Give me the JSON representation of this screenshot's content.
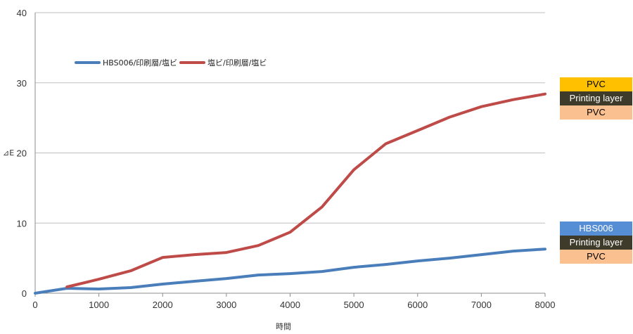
{
  "chart_data": {
    "type": "line",
    "title": "",
    "xlabel": "時間",
    "ylabel": "⊿E",
    "xlim": [
      0,
      8000
    ],
    "ylim": [
      0,
      40
    ],
    "xticks": [
      "0",
      "1000",
      "2000",
      "3000",
      "4000",
      "5000",
      "6000",
      "7000",
      "8000"
    ],
    "yticks": [
      "0",
      "10",
      "20",
      "30",
      "40"
    ],
    "grid": "horizontal",
    "legend_position": "top-left",
    "series": [
      {
        "name": "HBS006/印刷層/塩ビ",
        "color": "#4A7EBB",
        "x": [
          0,
          500,
          1000,
          1500,
          2000,
          2500,
          3000,
          3500,
          4000,
          4500,
          5000,
          5500,
          6000,
          6500,
          7000,
          7500,
          8000
        ],
        "y": [
          0,
          0.7,
          0.6,
          0.8,
          1.3,
          1.7,
          2.1,
          2.6,
          2.8,
          3.1,
          3.7,
          4.1,
          4.6,
          5.0,
          5.5,
          6.0,
          6.3
        ]
      },
      {
        "name": "塩ビ/印刷層/塩ビ",
        "color": "#BE4B48",
        "x": [
          500,
          1000,
          1500,
          2000,
          2500,
          3000,
          3500,
          4000,
          4500,
          5000,
          5500,
          6000,
          6500,
          7000,
          7500,
          8000
        ],
        "y": [
          0.9,
          2.0,
          3.2,
          5.1,
          5.5,
          5.8,
          6.8,
          8.7,
          12.3,
          17.6,
          21.3,
          23.2,
          25.1,
          26.6,
          27.6,
          28.4
        ]
      }
    ]
  },
  "stacks": {
    "upper": [
      {
        "label": "PVC",
        "bg": "#FFC000",
        "fg": "#000000"
      },
      {
        "label": "Printing layer",
        "bg": "#3F3B2A",
        "fg": "#ffffff"
      },
      {
        "label": "PVC",
        "bg": "#FAC090",
        "fg": "#000000"
      }
    ],
    "lower": [
      {
        "label": "HBS006",
        "bg": "#558ED5",
        "fg": "#ffffff"
      },
      {
        "label": "Printing layer",
        "bg": "#3F3B2A",
        "fg": "#ffffff"
      },
      {
        "label": "PVC",
        "bg": "#FAC090",
        "fg": "#000000"
      }
    ]
  }
}
